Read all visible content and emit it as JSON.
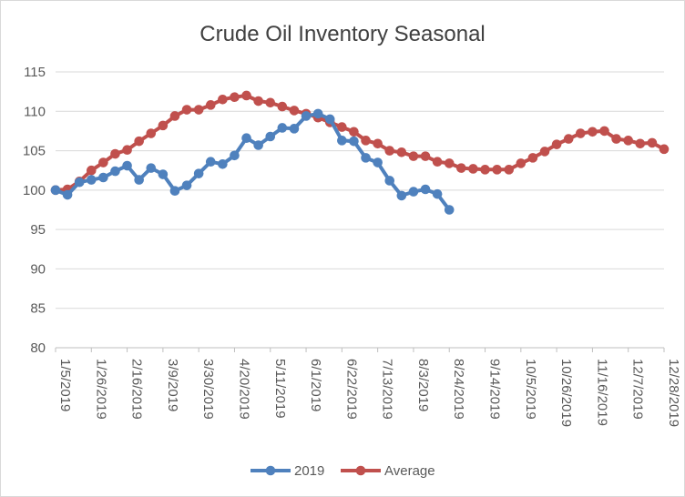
{
  "chart_data": {
    "type": "line",
    "title": "Crude Oil Inventory Seasonal",
    "ylim": [
      80,
      115
    ],
    "yticks": [
      80,
      85,
      90,
      95,
      100,
      105,
      110,
      115
    ],
    "x_start": "1/5/2019",
    "x_interval_days": 7,
    "num_weeks": 52,
    "xtick_labels": [
      "1/5/2019",
      "1/26/2019",
      "2/16/2019",
      "3/9/2019",
      "3/30/2019",
      "4/20/2019",
      "5/11/2019",
      "6/1/2019",
      "6/22/2019",
      "7/13/2019",
      "8/3/2019",
      "8/24/2019",
      "9/14/2019",
      "10/5/2019",
      "10/26/2019",
      "11/16/2019",
      "12/7/2019",
      "12/28/2019"
    ],
    "grid": true,
    "legend_position": "bottom",
    "series": [
      {
        "name": "2019",
        "color": "#4f81bd",
        "values": [
          100.0,
          99.4,
          101.0,
          101.3,
          101.6,
          102.4,
          103.1,
          101.3,
          102.8,
          102.0,
          99.9,
          100.6,
          102.1,
          103.6,
          103.3,
          104.4,
          106.6,
          105.7,
          106.8,
          107.9,
          107.8,
          109.4,
          109.7,
          109.0,
          106.3,
          106.2,
          104.1,
          103.5,
          101.2,
          99.3,
          99.8,
          100.1,
          99.5,
          97.5
        ]
      },
      {
        "name": "Average",
        "color": "#c0504d",
        "values": [
          100.0,
          100.1,
          101.1,
          102.5,
          103.5,
          104.6,
          105.1,
          106.2,
          107.2,
          108.2,
          109.4,
          110.2,
          110.2,
          110.8,
          111.5,
          111.8,
          112.0,
          111.3,
          111.1,
          110.6,
          110.1,
          109.7,
          109.2,
          108.6,
          108.0,
          107.4,
          106.3,
          105.9,
          105.0,
          104.8,
          104.3,
          104.3,
          103.6,
          103.4,
          102.8,
          102.7,
          102.6,
          102.6,
          102.6,
          103.4,
          104.1,
          104.9,
          105.8,
          106.5,
          107.2,
          107.4,
          107.5,
          106.5,
          106.3,
          105.9,
          106.0,
          105.2
        ]
      }
    ]
  }
}
